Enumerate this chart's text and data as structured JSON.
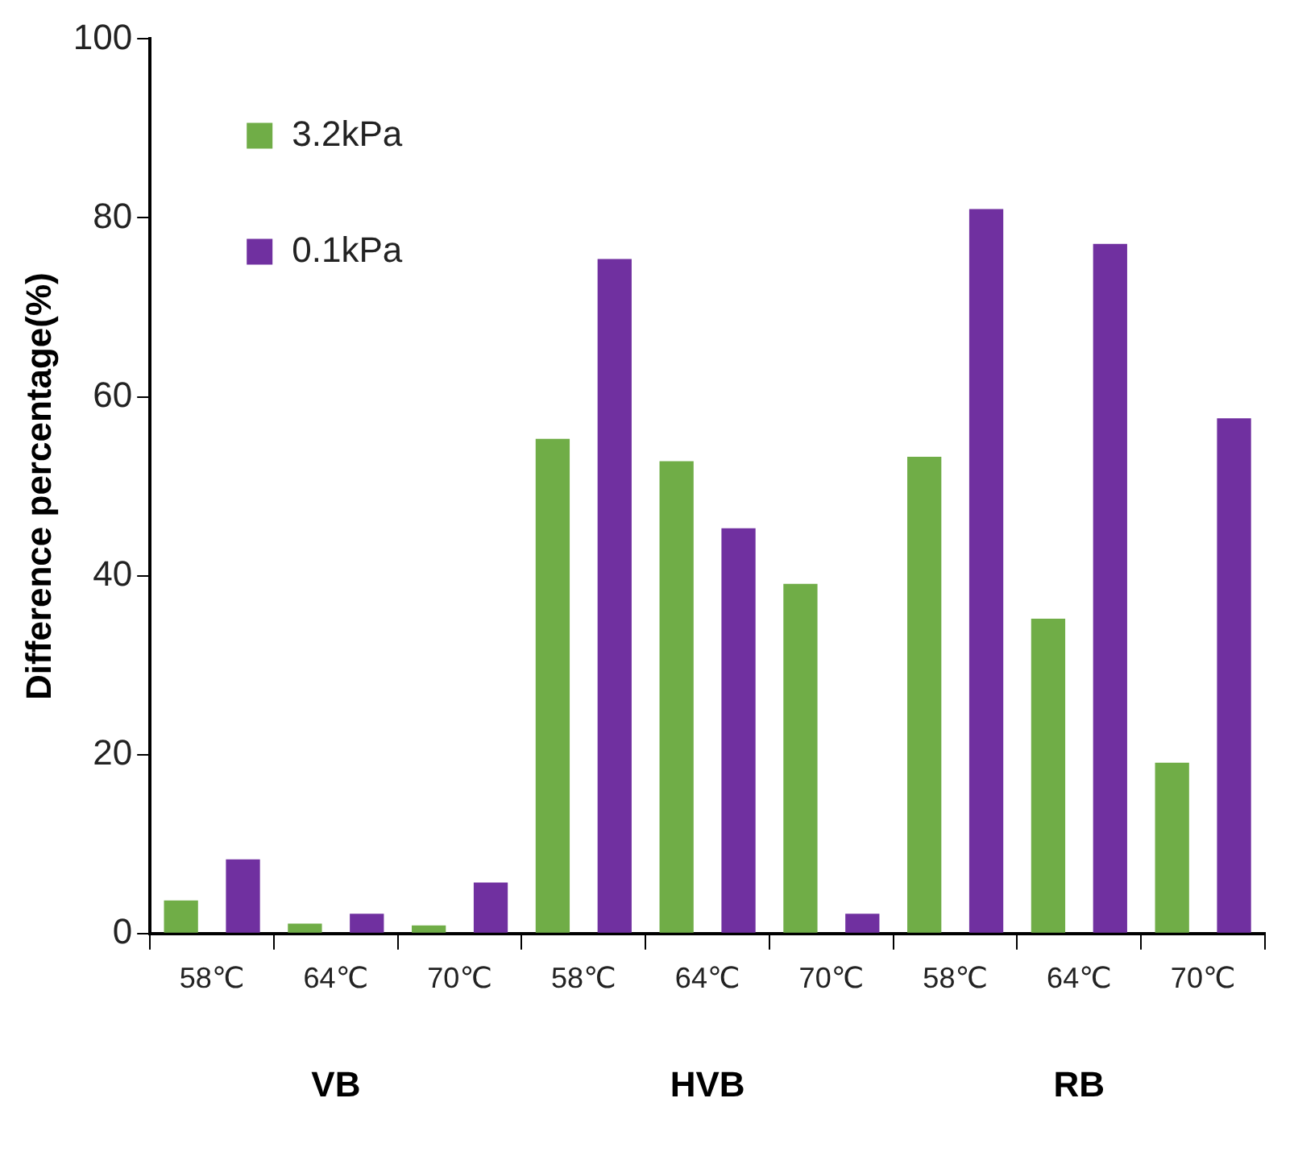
{
  "chart_data": {
    "type": "bar",
    "ylabel": "Difference percentage(%)",
    "categories": [
      "58℃",
      "64℃",
      "70℃",
      "58℃",
      "64℃",
      "70℃",
      "58℃",
      "64℃",
      "70℃"
    ],
    "series": [
      {
        "name": "3.2kPa",
        "color": "#70ad47",
        "values": [
          3.7,
          1.1,
          0.9,
          55.3,
          52.8,
          39.1,
          53.3,
          35.2,
          19.1
        ]
      },
      {
        "name": "0.1kPa",
        "color": "#7030a0",
        "values": [
          8.3,
          2.2,
          5.7,
          75.4,
          45.3,
          2.2,
          81.0,
          77.1,
          57.6
        ]
      }
    ],
    "annotations": [
      "VB",
      "HVB",
      "RB"
    ],
    "ylim": [
      0,
      100
    ],
    "yticks": [
      0,
      20,
      40,
      60,
      80,
      100
    ],
    "grid": false,
    "legend": "top left"
  }
}
